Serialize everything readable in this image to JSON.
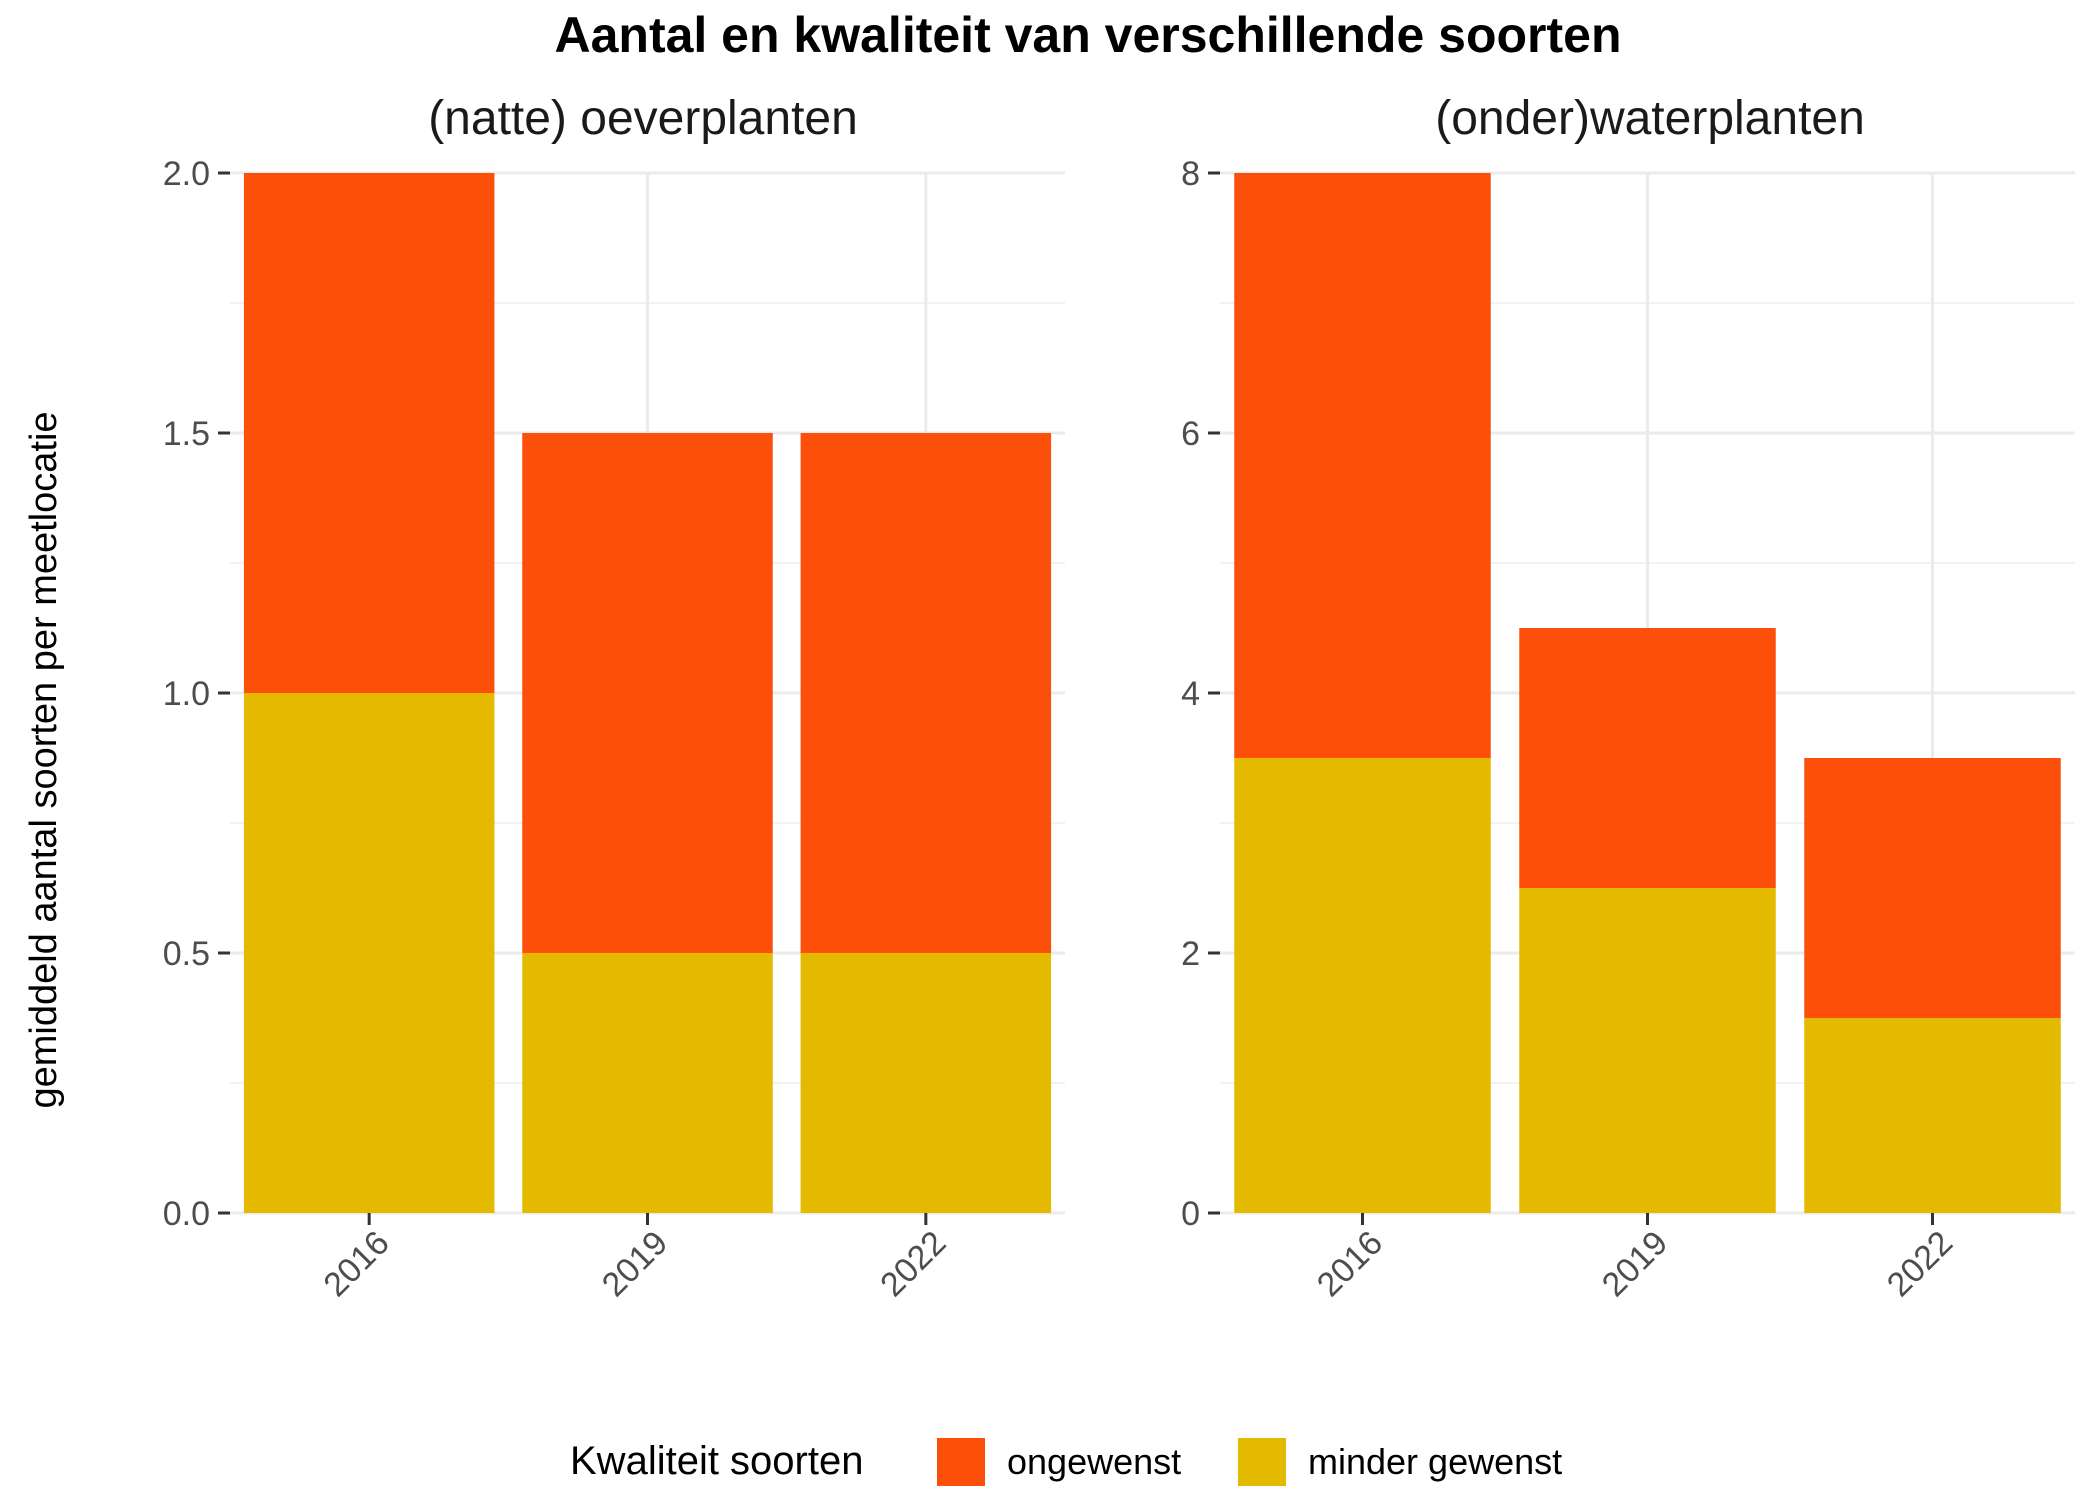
{
  "chart_data": {
    "type": "bar",
    "stacked": true,
    "title": "Aantal en kwaliteit van verschillende soorten",
    "ylabel": "gemiddeld aantal soorten per meetlocatie",
    "legend": {
      "title": "Kwaliteit soorten",
      "position": "bottom",
      "entries": [
        {
          "label": "ongewenst",
          "color": "#FC500A"
        },
        {
          "label": "minder gewenst",
          "color": "#E3BA00"
        }
      ]
    },
    "panels": [
      {
        "title": "(natte) oeverplanten",
        "categories": [
          "2016",
          "2019",
          "2022"
        ],
        "ylim": [
          0,
          2
        ],
        "y_ticks": [
          "0.0",
          "0.5",
          "1.0",
          "1.5",
          "2.0"
        ],
        "y_tick_values": [
          0,
          0.5,
          1.0,
          1.5,
          2.0
        ],
        "series": [
          {
            "name": "minder gewenst",
            "color": "#E3BA00",
            "values": [
              1.0,
              0.5,
              0.5
            ]
          },
          {
            "name": "ongewenst",
            "color": "#FC500A",
            "values": [
              1.0,
              1.0,
              1.0
            ]
          }
        ]
      },
      {
        "title": "(onder)waterplanten",
        "categories": [
          "2016",
          "2019",
          "2022"
        ],
        "ylim": [
          0,
          8
        ],
        "y_ticks": [
          "0",
          "2",
          "4",
          "6",
          "8"
        ],
        "y_tick_values": [
          0,
          2,
          4,
          6,
          8
        ],
        "series": [
          {
            "name": "minder gewenst",
            "color": "#E3BA00",
            "values": [
              3.5,
              2.5,
              1.5
            ]
          },
          {
            "name": "ongewenst",
            "color": "#FC500A",
            "values": [
              4.5,
              2.0,
              2.0
            ]
          }
        ]
      }
    ]
  }
}
